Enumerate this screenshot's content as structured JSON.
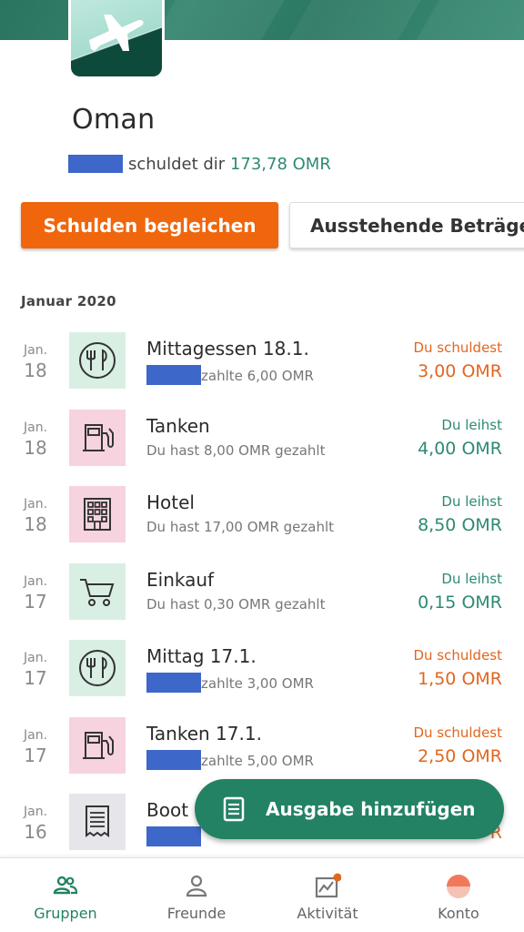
{
  "group": {
    "name": "Oman",
    "balance_text": "schuldet dir",
    "balance_amount": "173,78 OMR",
    "avatar_icon": "airplane-icon"
  },
  "actions": {
    "settle_label": "Schulden begleichen",
    "balances_label": "Ausstehende Beträge"
  },
  "section": {
    "month": "Januar 2020"
  },
  "expenses": [
    {
      "month": "Jan.",
      "day": "18",
      "icon": "cutlery-icon",
      "color": "green",
      "title": "Mittagessen 18.1.",
      "redacted": true,
      "meta": "zahlte 6,00 OMR",
      "status": "Du schuldest",
      "amount": "3,00 OMR",
      "kind": "owe"
    },
    {
      "month": "Jan.",
      "day": "18",
      "icon": "fuel-icon",
      "color": "pink",
      "title": "Tanken",
      "redacted": false,
      "meta": "Du hast 8,00 OMR gezahlt",
      "status": "Du leihst",
      "amount": "4,00 OMR",
      "kind": "lent"
    },
    {
      "month": "Jan.",
      "day": "18",
      "icon": "hotel-icon",
      "color": "pink",
      "title": "Hotel",
      "redacted": false,
      "meta": "Du hast 17,00 OMR gezahlt",
      "status": "Du leihst",
      "amount": "8,50 OMR",
      "kind": "lent"
    },
    {
      "month": "Jan.",
      "day": "17",
      "icon": "cart-icon",
      "color": "green",
      "title": "Einkauf",
      "redacted": false,
      "meta": "Du hast 0,30 OMR gezahlt",
      "status": "Du leihst",
      "amount": "0,15 OMR",
      "kind": "lent"
    },
    {
      "month": "Jan.",
      "day": "17",
      "icon": "cutlery-icon",
      "color": "green",
      "title": "Mittag 17.1.",
      "redacted": true,
      "meta": "zahlte 3,00 OMR",
      "status": "Du schuldest",
      "amount": "1,50 OMR",
      "kind": "owe"
    },
    {
      "month": "Jan.",
      "day": "17",
      "icon": "fuel-icon",
      "color": "pink",
      "title": "Tanken 17.1.",
      "redacted": true,
      "meta": "zahlte 5,00 OMR",
      "status": "Du schuldest",
      "amount": "2,50 OMR",
      "kind": "owe"
    },
    {
      "month": "Jan.",
      "day": "16",
      "icon": "receipt-icon",
      "color": "gray",
      "title": "Boot",
      "redacted": true,
      "meta": "",
      "status": "",
      "amount": "R",
      "kind": "owe"
    }
  ],
  "fab": {
    "label": "Ausgabe hinzufügen",
    "icon": "receipt-icon"
  },
  "tabs": [
    {
      "label": "Gruppen",
      "icon": "group-icon",
      "active": true
    },
    {
      "label": "Freunde",
      "icon": "person-icon",
      "active": false
    },
    {
      "label": "Aktivität",
      "icon": "chart-icon",
      "active": false
    },
    {
      "label": "Konto",
      "icon": "account-avatar",
      "active": false
    }
  ],
  "colors": {
    "brand_green": "#238264",
    "owe_orange": "#e1661f",
    "primary_button": "#f0660d",
    "lent_teal": "#2d8a74",
    "redaction_blue": "#3d67c9"
  }
}
